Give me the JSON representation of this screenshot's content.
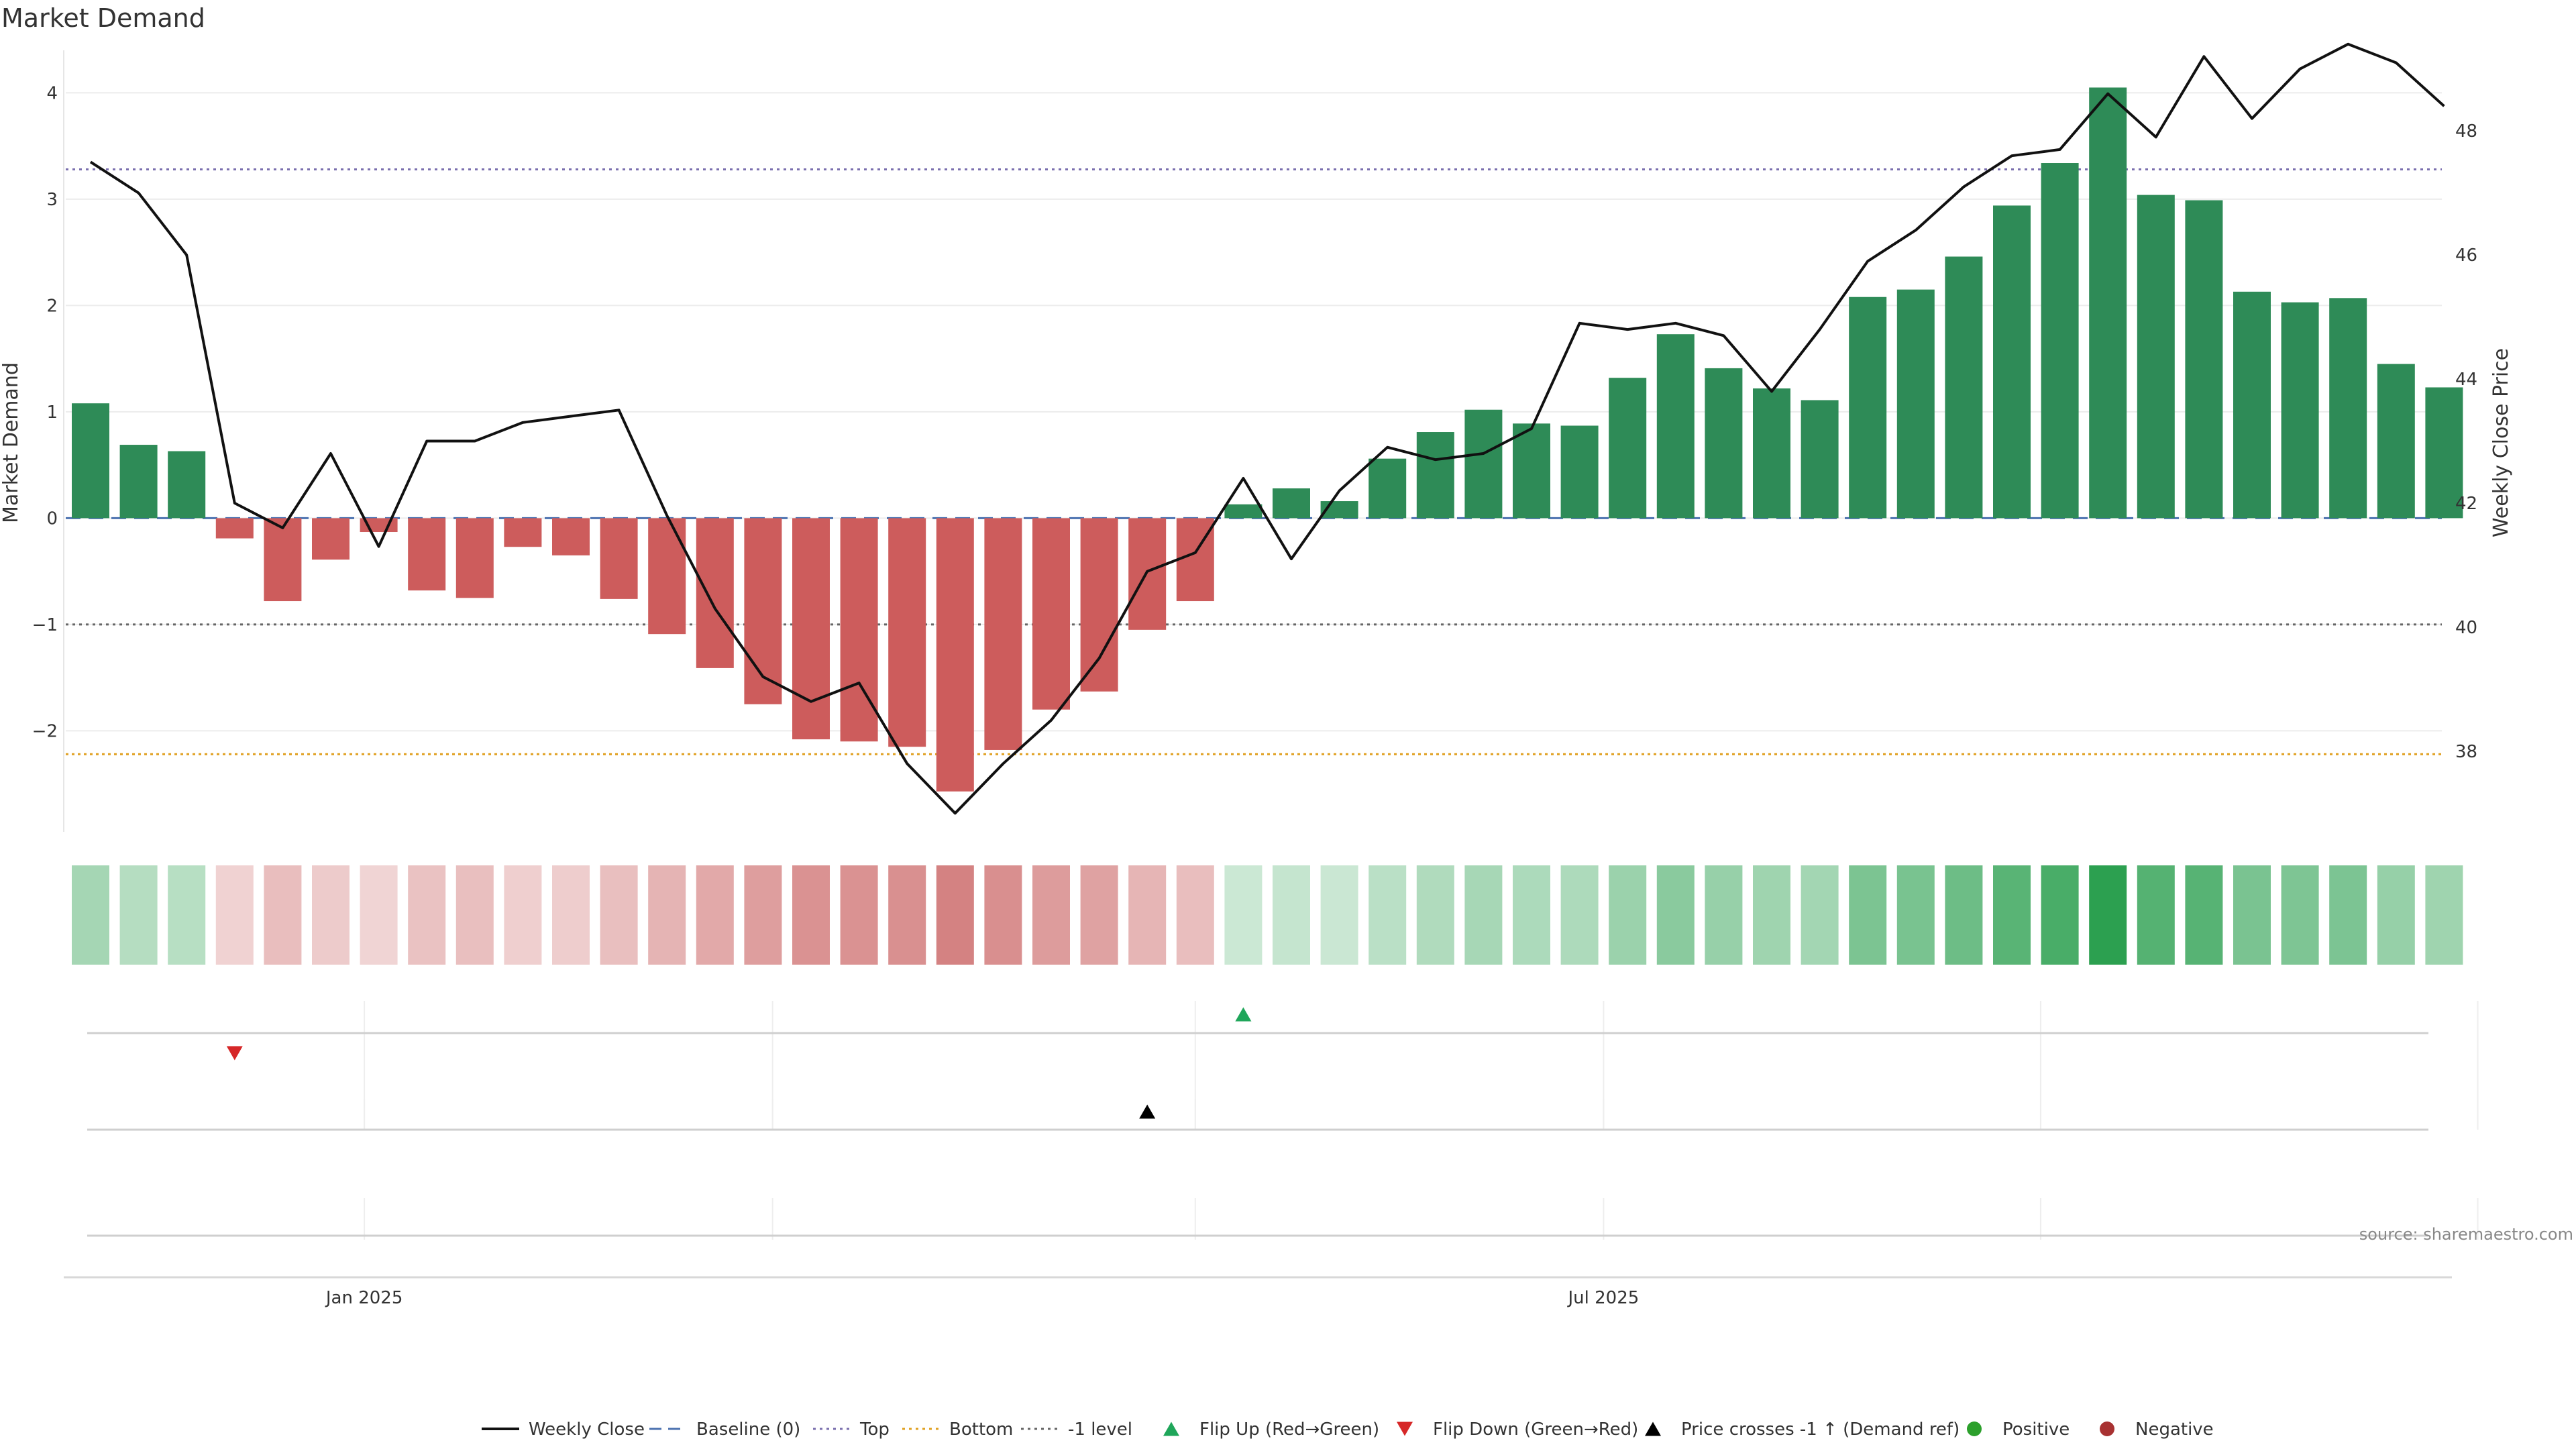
{
  "chart_data": {
    "type": "bar",
    "title": "Market Demand",
    "ylabel": "Market Demand",
    "y2label": "Weekly Close Price",
    "ylim": [
      -2.95,
      4.4
    ],
    "y2lim": [
      36.7,
      49.3
    ],
    "yticks": [
      -2,
      -1,
      0,
      1,
      2,
      3,
      4
    ],
    "yticklabels": [
      "−2",
      "−1",
      "0",
      "1",
      "2",
      "3",
      "4"
    ],
    "y2ticks": [
      38,
      40,
      42,
      44,
      46,
      48
    ],
    "y2ticklabels": [
      "38",
      "40",
      "42",
      "44",
      "46",
      "48"
    ],
    "xticks": [
      {
        "index": 5.7,
        "label": "Jan 2025"
      },
      {
        "index": 31.5,
        "label": "Jul 2025"
      }
    ],
    "levels": {
      "baseline": {
        "label": "Baseline (0)",
        "value": 0,
        "color": "#4c72b0"
      },
      "top": {
        "label": "Top",
        "value": 3.28,
        "color": "#7a6fae"
      },
      "bottom": {
        "label": "Bottom",
        "value": -2.22,
        "color": "#e0a020"
      },
      "minus_one": {
        "label": "-1 level",
        "value": -1,
        "color": "#666666"
      }
    },
    "series": [
      {
        "name": "Market Demand",
        "values": [
          1.08,
          0.69,
          0.63,
          -0.19,
          -0.78,
          -0.39,
          -0.13,
          -0.68,
          -0.75,
          -0.27,
          -0.35,
          -0.76,
          -1.09,
          -1.41,
          -1.75,
          -2.08,
          -2.1,
          -2.15,
          -2.57,
          -2.18,
          -1.8,
          -1.63,
          -1.05,
          -0.78,
          0.13,
          0.28,
          0.16,
          0.56,
          0.81,
          1.02,
          0.89,
          0.87,
          1.32,
          1.73,
          1.41,
          1.22,
          1.11,
          2.08,
          2.15,
          2.46,
          2.94,
          3.34,
          4.05,
          3.04,
          2.99,
          2.13,
          2.03,
          2.07,
          1.45,
          1.23
        ],
        "positive_color": "#2e8b57",
        "negative_color": "#cd5c5c"
      },
      {
        "name": "Weekly Close",
        "axis": "right",
        "values": [
          47.5,
          47.0,
          46.0,
          42.0,
          41.6,
          42.8,
          41.3,
          43.0,
          43.0,
          43.3,
          43.4,
          43.5,
          41.8,
          40.3,
          39.2,
          38.8,
          39.1,
          37.8,
          37.0,
          37.8,
          38.5,
          39.5,
          40.9,
          41.2,
          42.4,
          41.1,
          42.2,
          42.9,
          42.7,
          42.8,
          43.2,
          44.9,
          44.8,
          44.9,
          44.7,
          43.8,
          44.8,
          45.9,
          46.4,
          47.1,
          47.6,
          47.7,
          48.6,
          47.9,
          49.2,
          48.2,
          49.0,
          49.4,
          49.1,
          48.4
        ],
        "color": "#111111"
      }
    ],
    "events": {
      "flip_up": [
        {
          "index": 24,
          "label": "Flip Up (Red→Green)",
          "color": "#1fa65a"
        }
      ],
      "flip_down": [
        {
          "index": 3,
          "label": "Flip Down (Green→Red)",
          "color": "#d62728"
        }
      ],
      "price_cross": [
        {
          "index": 22,
          "label": "Price crosses -1 ↑ (Demand ref)",
          "color": "#000000"
        }
      ]
    },
    "legend": [
      {
        "label": "Weekly Close",
        "kind": "line",
        "color": "#111111"
      },
      {
        "label": "Baseline (0)",
        "kind": "dashed",
        "color": "#4c72b0"
      },
      {
        "label": "Top",
        "kind": "dotted",
        "color": "#7a6fae"
      },
      {
        "label": "Bottom",
        "kind": "dotted",
        "color": "#e0a020"
      },
      {
        "label": "-1 level",
        "kind": "dotted",
        "color": "#666666"
      },
      {
        "label": "Flip Up (Red→Green)",
        "kind": "triangle-up",
        "color": "#1fa65a"
      },
      {
        "label": "Flip Down (Green→Red)",
        "kind": "triangle-down",
        "color": "#d62728"
      },
      {
        "label": "Price crosses -1 ↑ (Demand ref)",
        "kind": "triangle-up",
        "color": "#000000"
      },
      {
        "label": "Positive",
        "kind": "dot",
        "color": "#2ca02c"
      },
      {
        "label": "Negative",
        "kind": "dot",
        "color": "#a83232"
      }
    ],
    "legend_position": "bottom",
    "grid": true,
    "source": "source: sharemaestro.com"
  }
}
